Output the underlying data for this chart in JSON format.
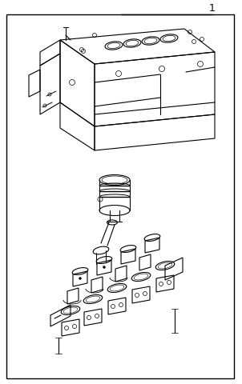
{
  "bg_color": "#ffffff",
  "line_color": "#000000",
  "fig_width": 3.02,
  "fig_height": 4.8,
  "dpi": 100
}
